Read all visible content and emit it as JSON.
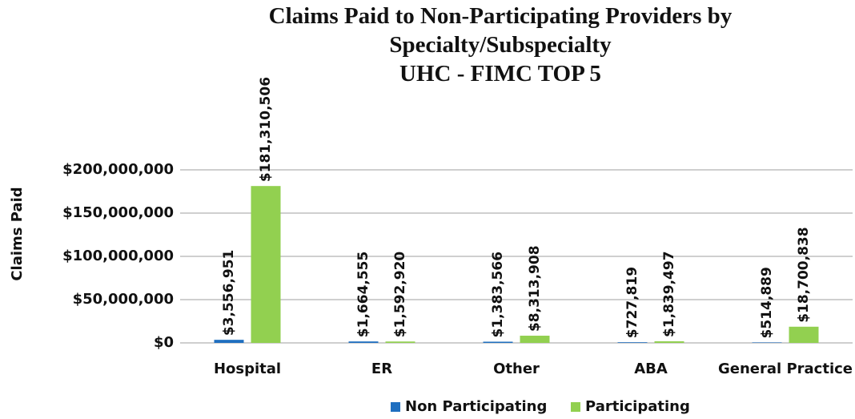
{
  "chart_data": {
    "type": "bar",
    "title": "Claims Paid to Non-Participating Providers by Specialty/Subspecialty",
    "subtitle": "UHC - FIMC TOP 5",
    "y_label": "Claims Paid",
    "categories": [
      "Hospital",
      "ER",
      "Other",
      "ABA",
      "General Practice"
    ],
    "series": [
      {
        "name": "Non Participating",
        "color": "#1f6fc0",
        "values": [
          3556951,
          1664555,
          1383566,
          727819,
          514889
        ],
        "value_labels": [
          "$3,556,951",
          "$1,664,555",
          "$1,383,566",
          "$727,819",
          "$514,889"
        ]
      },
      {
        "name": "Participating",
        "color": "#92d050",
        "values": [
          181310506,
          1592920,
          8313908,
          1839497,
          18700838
        ],
        "value_labels": [
          "$181,310,506",
          "$1,592,920",
          "$8,313,908",
          "$1,839,497",
          "$18,700,838"
        ]
      }
    ],
    "ylim": [
      0,
      200000000
    ],
    "yticks": [
      {
        "value": 0,
        "label": "$0"
      },
      {
        "value": 50000000,
        "label": "$50,000,000"
      },
      {
        "value": 100000000,
        "label": "$100,000,000"
      },
      {
        "value": 150000000,
        "label": "$150,000,000"
      },
      {
        "value": 200000000,
        "label": "$200,000,000"
      }
    ],
    "grid": true,
    "legend": "bottom"
  }
}
